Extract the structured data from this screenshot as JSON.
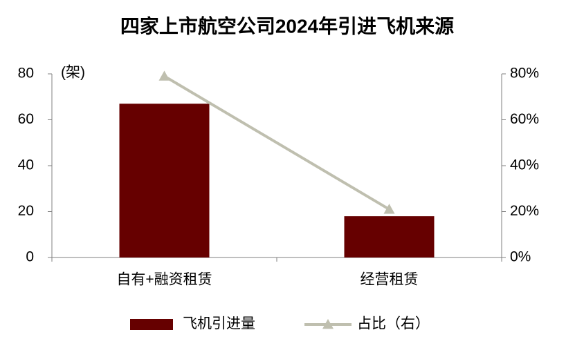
{
  "chart_data": {
    "type": "bar",
    "title": "四家上市航空公司2024年引进飞机来源",
    "ylabel": "(架)",
    "categories": [
      "自有+融资租赁",
      "经营租赁"
    ],
    "series": [
      {
        "name": "飞机引进量",
        "type": "bar",
        "color": "#660000",
        "values": [
          67,
          18
        ]
      },
      {
        "name": "占比（右）",
        "type": "line",
        "color": "#bfbfaf",
        "axis": "y2",
        "values": [
          79,
          21
        ]
      }
    ],
    "ylim": [
      0,
      80
    ],
    "yticks": [
      0,
      20,
      40,
      60,
      80
    ],
    "y2lim": [
      0,
      80
    ],
    "y2ticks": [
      {
        "value": 0,
        "label": "0%"
      },
      {
        "value": 20,
        "label": "20%"
      },
      {
        "value": 40,
        "label": "40%"
      },
      {
        "value": 60,
        "label": "60%"
      },
      {
        "value": 80,
        "label": "80%"
      }
    ],
    "legend": "bottom"
  }
}
